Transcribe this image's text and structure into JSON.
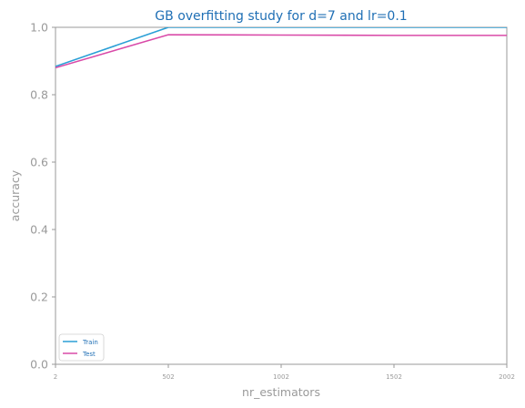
{
  "chart_data": {
    "type": "line",
    "title": "GB overfitting study for d=7 and lr=0.1",
    "xlabel": "nr_estimators",
    "ylabel": "accuracy",
    "x": [
      2,
      502,
      1002,
      1502,
      2002
    ],
    "x_ticks": [
      2,
      502,
      1002,
      1502,
      2002
    ],
    "y_ticks": [
      0.0,
      0.2,
      0.4,
      0.6,
      0.8,
      1.0
    ],
    "y_tick_labels": [
      "0.0",
      "0.2",
      "0.4",
      "0.6",
      "0.8",
      "1.0"
    ],
    "xlim": [
      2,
      2002
    ],
    "ylim": [
      0,
      1.0
    ],
    "grid": false,
    "legend_position": "lower-left",
    "series": [
      {
        "name": "Train",
        "color": "#2a9fd6",
        "values": [
          0.884,
          1.0,
          1.0,
          1.0,
          1.0
        ]
      },
      {
        "name": "Test",
        "color": "#d94aa8",
        "values": [
          0.88,
          0.978,
          0.977,
          0.976,
          0.976
        ]
      }
    ]
  }
}
